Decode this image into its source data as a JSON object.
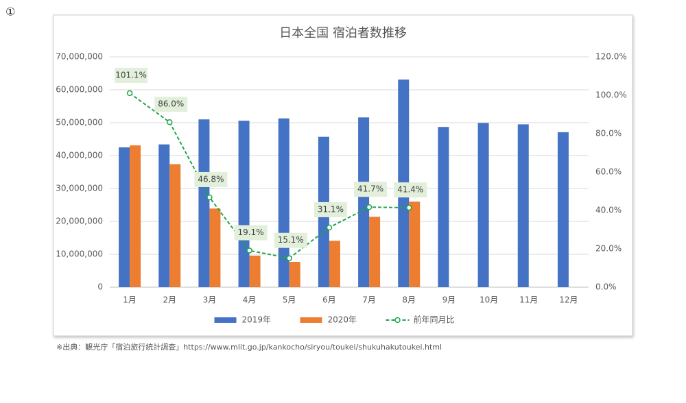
{
  "marker": "①",
  "footnote": "※出典：観光庁「宿泊旅行統計調査」https://www.mlit.go.jp/kankocho/siryou/toukei/shukuhakutoukei.html",
  "chart_data": {
    "type": "bar",
    "title": "日本全国 宿泊者数推移",
    "categories": [
      "1月",
      "2月",
      "3月",
      "4月",
      "5月",
      "6月",
      "7月",
      "8月",
      "9月",
      "10月",
      "11月",
      "12月"
    ],
    "series": [
      {
        "name": "2019年",
        "color": "#4472c4",
        "values": [
          42500000,
          43400000,
          51000000,
          50600000,
          51300000,
          45700000,
          51600000,
          63100000,
          48700000,
          49900000,
          49500000,
          47100000
        ]
      },
      {
        "name": "2020年",
        "color": "#ed7d31",
        "values": [
          43100000,
          37400000,
          23900000,
          9600000,
          7700000,
          14100000,
          21400000,
          26000000,
          null,
          null,
          null,
          null
        ]
      },
      {
        "name": "前年同月比",
        "color": "#1ea64a",
        "type": "line",
        "axis": "y2",
        "values": [
          101.1,
          86.0,
          46.8,
          19.1,
          15.1,
          31.1,
          41.7,
          41.4,
          null,
          null,
          null,
          null
        ],
        "value_labels": [
          "101.1%",
          "86.0%",
          "46.8%",
          "19.1%",
          "15.1%",
          "31.1%",
          "41.7%",
          "41.4%",
          null,
          null,
          null,
          null
        ]
      }
    ],
    "ylim": [
      0,
      70000000
    ],
    "yticks": [
      0,
      {
        "value": 10000000,
        "label": "10,000,000"
      },
      {
        "value": 20000000,
        "label": "20,000,000"
      },
      {
        "value": 30000000,
        "label": "30,000,000"
      },
      {
        "value": 40000000,
        "label": "40,000,000"
      },
      {
        "value": 50000000,
        "label": "50,000,000"
      },
      {
        "value": 60000000,
        "label": "60,000,000"
      },
      {
        "value": 70000000,
        "label": "70,000,000"
      }
    ],
    "y2lim": [
      0,
      120
    ],
    "y2ticks": [
      {
        "value": 0,
        "label": "0.0%"
      },
      {
        "value": 20,
        "label": "20.0%"
      },
      {
        "value": 40,
        "label": "40.0%"
      },
      {
        "value": 60,
        "label": "60.0%"
      },
      {
        "value": 80,
        "label": "80.0%"
      },
      {
        "value": 100,
        "label": "100.0%"
      },
      {
        "value": 120,
        "label": "120.0%"
      }
    ],
    "grid": true,
    "legend": "bottom"
  }
}
